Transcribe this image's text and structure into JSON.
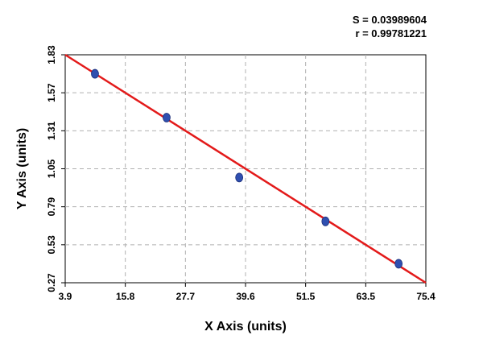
{
  "stats": {
    "s_text": "S = 0.03989604",
    "r_text": "r = 0.99781221"
  },
  "chart_data": {
    "type": "scatter",
    "title": "",
    "xlabel": "X Axis (units)",
    "ylabel": "Y Axis (units)",
    "xlim": [
      3.9,
      75.4
    ],
    "ylim": [
      0.27,
      1.83
    ],
    "x_ticks": [
      "3.9",
      "15.8",
      "27.7",
      "39.6",
      "51.5",
      "63.5",
      "75.4"
    ],
    "y_ticks": [
      "0.27",
      "0.53",
      "0.79",
      "1.05",
      "1.31",
      "1.57",
      "1.83"
    ],
    "grid": true,
    "series": [
      {
        "points": [
          {
            "x": 9.8,
            "y": 1.7
          },
          {
            "x": 24.0,
            "y": 1.4
          },
          {
            "x": 38.4,
            "y": 0.99
          },
          {
            "x": 55.5,
            "y": 0.69
          },
          {
            "x": 70.0,
            "y": 0.4
          }
        ],
        "color": "#2f4fb0"
      }
    ],
    "fit_line": {
      "from": {
        "x": 3.9,
        "y": 1.83
      },
      "to": {
        "x": 75.4,
        "y": 0.27
      },
      "color": "#e31a1a"
    }
  }
}
